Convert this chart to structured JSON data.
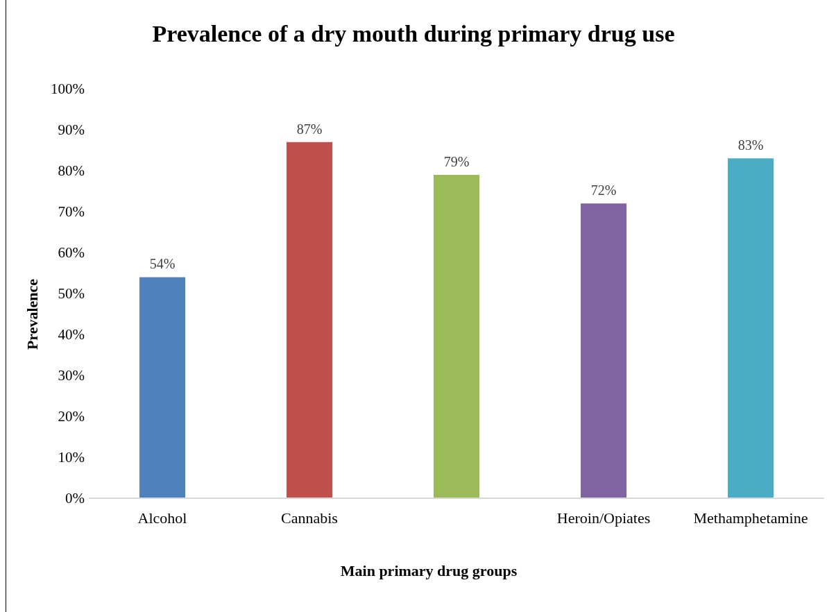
{
  "chart_data": {
    "type": "bar",
    "title": "Prevalence of a dry mouth during primary drug use",
    "xlabel": "Main primary drug groups",
    "ylabel": "Prevalence",
    "categories": [
      "Alcohol",
      "Cannabis",
      null,
      "Heroin/Opiates",
      "Methamphetamine"
    ],
    "values": [
      54,
      87,
      79,
      72,
      83
    ],
    "colors": [
      "#4f81bd",
      "#c0504d",
      "#9bbb59",
      "#8064a2",
      "#4bacc6"
    ],
    "value_labels": [
      "54%",
      "87%",
      "79%",
      "72%",
      "83%"
    ],
    "ylim": [
      0,
      100
    ],
    "yticks": [
      {
        "value": 0,
        "label": "0%"
      },
      {
        "value": 10,
        "label": "10%"
      },
      {
        "value": 20,
        "label": "20%"
      },
      {
        "value": 30,
        "label": "30%"
      },
      {
        "value": 40,
        "label": "40%"
      },
      {
        "value": 50,
        "label": "50%"
      },
      {
        "value": 60,
        "label": "60%"
      },
      {
        "value": 70,
        "label": "70%"
      },
      {
        "value": 80,
        "label": "80%"
      },
      {
        "value": 90,
        "label": "90%"
      },
      {
        "value": 100,
        "label": "100%"
      }
    ],
    "grid": false,
    "legend": false
  }
}
